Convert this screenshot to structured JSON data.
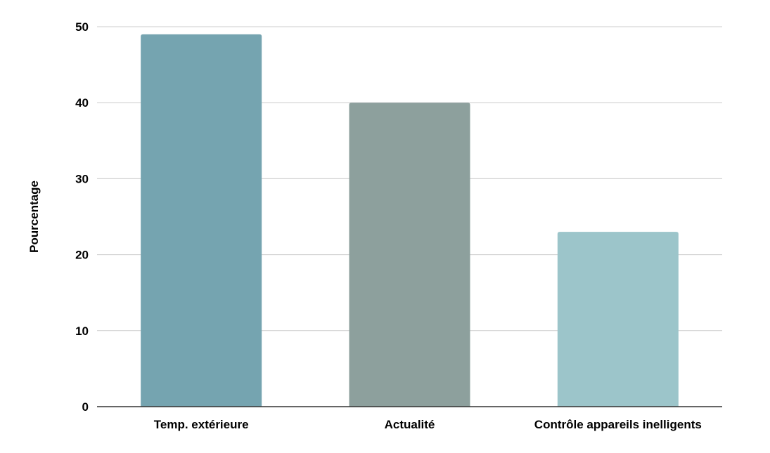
{
  "chart_data": {
    "type": "bar",
    "title": "",
    "xlabel": "",
    "ylabel": "Pourcentage",
    "categories": [
      "Temp. extérieure",
      "Actualité",
      "Contrôle appareils inelligents"
    ],
    "values": [
      49,
      40,
      23
    ],
    "colors": [
      "#75a4b0",
      "#8da09d",
      "#9cc5ca"
    ],
    "ylim": [
      0,
      50
    ],
    "yticks": [
      "0",
      "10",
      "20",
      "30",
      "40",
      "50"
    ],
    "grid": true,
    "legend": "none"
  }
}
